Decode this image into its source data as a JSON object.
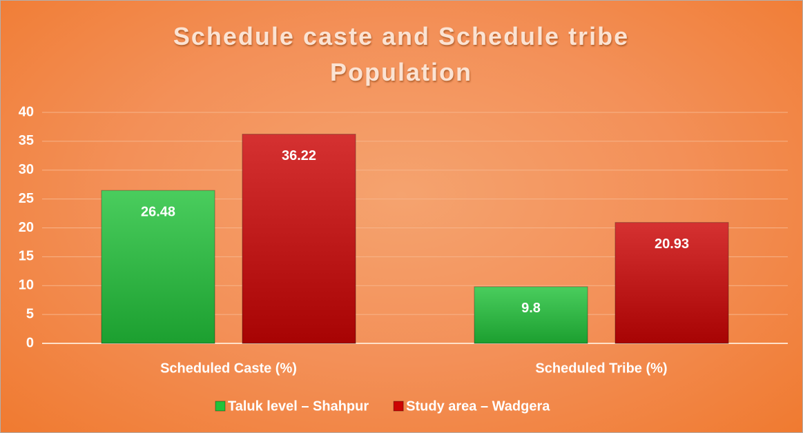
{
  "chart_data": {
    "type": "bar",
    "title": "Schedule caste and Schedule tribe Population",
    "categories": [
      "Scheduled Caste (%)",
      "Scheduled Tribe (%)"
    ],
    "series": [
      {
        "name": "Taluk level – Shahpur",
        "color": "#22c23a",
        "values": [
          26.48,
          9.8
        ]
      },
      {
        "name": "Study area – Wadgera",
        "color": "#cc0404",
        "values": [
          36.22,
          20.93
        ]
      }
    ],
    "ylim": [
      0,
      40
    ],
    "yticks": [
      0,
      5,
      10,
      15,
      20,
      25,
      30,
      35,
      40
    ],
    "grid": true,
    "legend": "bottom"
  }
}
